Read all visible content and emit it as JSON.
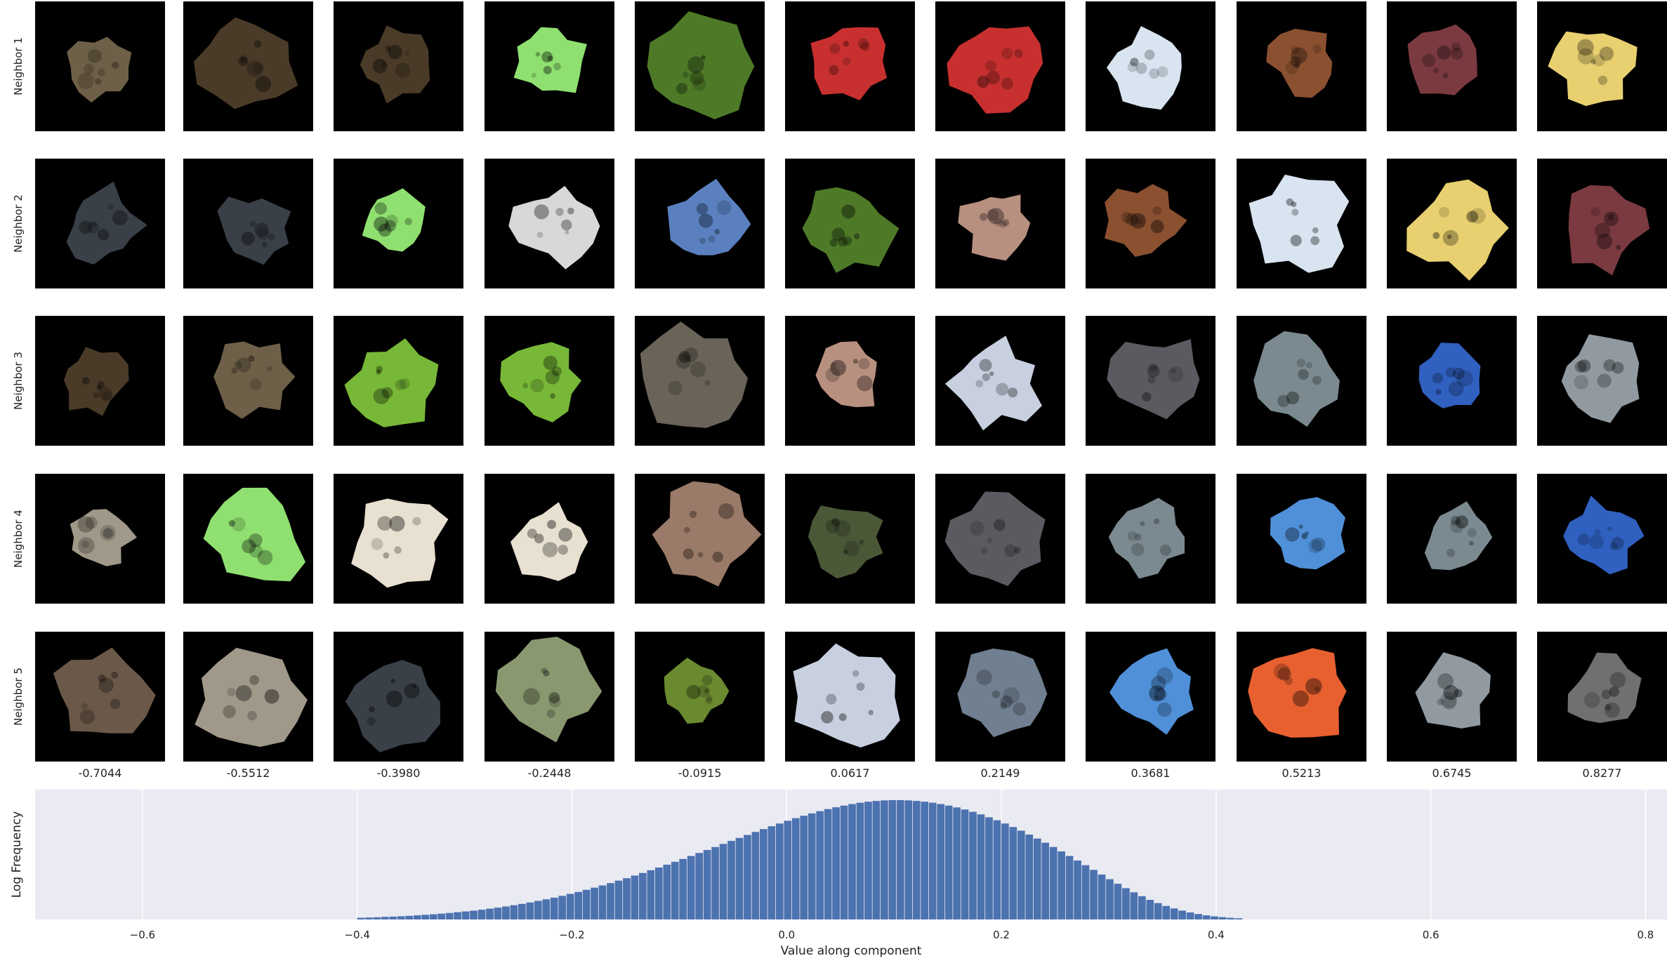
{
  "figure": {
    "row_labels": [
      "Neighbor 1",
      "Neighbor 2",
      "Neighbor 3",
      "Neighbor 4",
      "Neighbor 5"
    ],
    "column_values": [
      "-0.7044",
      "-0.5512",
      "-0.3980",
      "-0.2448",
      "-0.0915",
      "0.0617",
      "0.2149",
      "0.3681",
      "0.5213",
      "0.6745",
      "0.8277"
    ],
    "thumbnail_background": "#000000",
    "thumbnail_note_colors": {
      "row1": [
        "#6e6048",
        "#4a3b28",
        "#4a3b28",
        "#8fe070",
        "#4e7a28",
        "#c83030",
        "#c83030",
        "#d8e4f0",
        "#8a5030",
        "#7a3a40",
        "#e8d070"
      ],
      "row2": [
        "#3a4048",
        "#3a4048",
        "#8fe070",
        "#d8d8d8",
        "#5a80c0",
        "#4e7a28",
        "#b89080",
        "#8a5030",
        "#d8e4f0",
        "#e8d070",
        "#7a3a40"
      ],
      "row3": [
        "#4a3b28",
        "#6e6048",
        "#78b838",
        "#78b838",
        "#6a6458",
        "#b89080",
        "#c8d0e0",
        "#5a5a60",
        "#7a8a90",
        "#3060c0",
        "#909aa0"
      ],
      "row4": [
        "#a09888",
        "#8fe070",
        "#e8e0d0",
        "#e8e0d0",
        "#9a7a68",
        "#4a5838",
        "#5a5a60",
        "#7a8a90",
        "#5090d8",
        "#7a8a90",
        "#3060c0"
      ],
      "row5": [
        "#6a5848",
        "#a09888",
        "#3a4048",
        "#8a9870",
        "#6a8a30",
        "#c8d0e0",
        "#708090",
        "#5090d8",
        "#e86030",
        "#909aa0",
        "#707070"
      ]
    }
  },
  "chart_data": {
    "type": "bar",
    "title": "",
    "xlabel": "Value along component",
    "ylabel": "Log Frequency",
    "xlim": [
      -0.7,
      0.82
    ],
    "x_ticks": [
      -0.6,
      -0.4,
      -0.2,
      0.0,
      0.2,
      0.4,
      0.6,
      0.8
    ],
    "x_tick_labels": [
      "−0.6",
      "−0.4",
      "−0.2",
      "0.0",
      "0.2",
      "0.4",
      "0.6",
      "0.8"
    ],
    "grid": true,
    "background": "#eaeaf2",
    "bar_color": "#4c72b0",
    "bin_width": 0.0075,
    "x": [
      -0.4,
      -0.3925,
      -0.385,
      -0.3775,
      -0.37,
      -0.3625,
      -0.355,
      -0.3475,
      -0.34,
      -0.3325,
      -0.325,
      -0.3175,
      -0.31,
      -0.3025,
      -0.295,
      -0.2875,
      -0.28,
      -0.2725,
      -0.265,
      -0.2575,
      -0.25,
      -0.2425,
      -0.235,
      -0.2275,
      -0.22,
      -0.2125,
      -0.205,
      -0.1975,
      -0.19,
      -0.1825,
      -0.175,
      -0.1675,
      -0.16,
      -0.1525,
      -0.145,
      -0.1375,
      -0.13,
      -0.1225,
      -0.115,
      -0.1075,
      -0.1,
      -0.0925,
      -0.085,
      -0.0775,
      -0.07,
      -0.0625,
      -0.055,
      -0.0475,
      -0.04,
      -0.0325,
      -0.025,
      -0.0175,
      -0.01,
      -0.0025,
      0.005,
      0.0125,
      0.02,
      0.0275,
      0.035,
      0.0425,
      0.05,
      0.0575,
      0.065,
      0.0725,
      0.08,
      0.0875,
      0.095,
      0.1025,
      0.11,
      0.1175,
      0.125,
      0.1325,
      0.14,
      0.1475,
      0.155,
      0.1625,
      0.17,
      0.1775,
      0.185,
      0.1925,
      0.2,
      0.2075,
      0.215,
      0.2225,
      0.23,
      0.2375,
      0.245,
      0.2525,
      0.26,
      0.2675,
      0.275,
      0.2825,
      0.29,
      0.2975,
      0.305,
      0.3125,
      0.32,
      0.3275,
      0.335,
      0.3425,
      0.35,
      0.3575,
      0.365,
      0.3725,
      0.38,
      0.3875,
      0.395,
      0.4025,
      0.41,
      0.4175
    ],
    "y": [
      0.013,
      0.015,
      0.017,
      0.02,
      0.022,
      0.025,
      0.028,
      0.032,
      0.036,
      0.04,
      0.045,
      0.05,
      0.056,
      0.062,
      0.068,
      0.075,
      0.083,
      0.091,
      0.1,
      0.11,
      0.12,
      0.131,
      0.143,
      0.155,
      0.168,
      0.182,
      0.197,
      0.212,
      0.228,
      0.245,
      0.262,
      0.28,
      0.299,
      0.318,
      0.338,
      0.358,
      0.379,
      0.4,
      0.422,
      0.444,
      0.466,
      0.489,
      0.512,
      0.535,
      0.558,
      0.582,
      0.605,
      0.628,
      0.651,
      0.674,
      0.696,
      0.718,
      0.739,
      0.76,
      0.78,
      0.799,
      0.817,
      0.834,
      0.85,
      0.864,
      0.877,
      0.889,
      0.899,
      0.907,
      0.913,
      0.917,
      0.919,
      0.919,
      0.917,
      0.913,
      0.907,
      0.899,
      0.889,
      0.877,
      0.863,
      0.847,
      0.829,
      0.809,
      0.787,
      0.764,
      0.739,
      0.712,
      0.684,
      0.654,
      0.623,
      0.591,
      0.558,
      0.524,
      0.489,
      0.454,
      0.418,
      0.382,
      0.346,
      0.31,
      0.275,
      0.241,
      0.209,
      0.179,
      0.151,
      0.126,
      0.104,
      0.085,
      0.068,
      0.054,
      0.042,
      0.032,
      0.024,
      0.018,
      0.013,
      0.009
    ]
  }
}
